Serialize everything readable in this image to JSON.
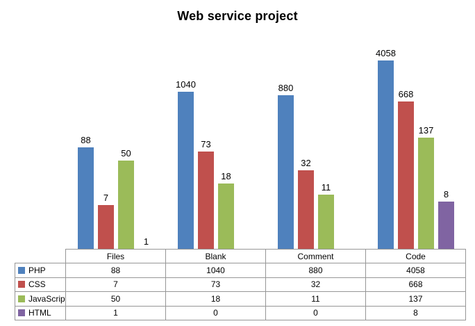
{
  "title": "Web service project",
  "chart_data": {
    "type": "bar",
    "title": "Web service project",
    "subtitle": "",
    "xlabel": "",
    "ylabel": "",
    "categories": [
      "Files",
      "Blank",
      "Comment",
      "Code"
    ],
    "series": [
      {
        "name": "PHP",
        "color": "#4F81BD",
        "values": [
          88,
          1040,
          880,
          4058
        ]
      },
      {
        "name": "CSS",
        "color": "#C0504D",
        "values": [
          7,
          73,
          32,
          668
        ]
      },
      {
        "name": "JavaScript",
        "color": "#9BBB59",
        "values": [
          50,
          18,
          11,
          137
        ]
      },
      {
        "name": "HTML",
        "color": "#8064A2",
        "values": [
          1,
          0,
          0,
          8
        ]
      }
    ],
    "scale": "log10",
    "value_labels": true,
    "grid": false,
    "legend_position": "data-table-left-column",
    "layout": "clustered bars with attached data table",
    "axis_color": "#969696",
    "text_color": "#000000"
  }
}
